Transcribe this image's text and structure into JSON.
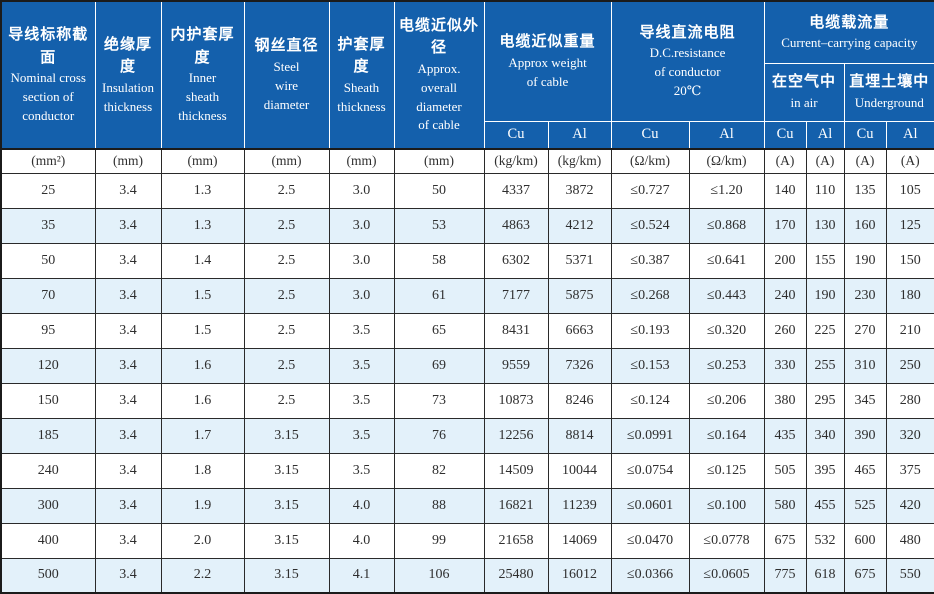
{
  "colors": {
    "header_bg": "#1460ac",
    "header_text": "#ffffff",
    "row_alt_bg": "#e3f1fa",
    "body_text": "#2e2e2e",
    "grid_line": "#2a2a2a"
  },
  "table": {
    "columns": [
      {
        "zh": "导线标称截面",
        "en": "Nominal cross\nsection of\nconductor"
      },
      {
        "zh": "绝缘厚度",
        "en": "Insulation\nthickness"
      },
      {
        "zh": "内护套厚度",
        "en": "Inner\nsheath\nthickness"
      },
      {
        "zh": "钢丝直径",
        "en": "Steel\nwire\ndiameter"
      },
      {
        "zh": "护套厚度",
        "en": "Sheath\nthickness"
      },
      {
        "zh": "电缆近似外径",
        "en": "Approx.\noverall\ndiameter\nof cable"
      }
    ],
    "groups": {
      "weight": {
        "zh": "电缆近似重量",
        "en": "Approx weight\nof cable"
      },
      "resistance": {
        "zh": "导线直流电阻",
        "en": "D.C.resistance\nof conductor\n20℃"
      },
      "capacity": {
        "zh": "电缆载流量",
        "en": "Current–carrying capacity"
      },
      "in_air": {
        "zh": "在空气中",
        "en": "in air"
      },
      "underground": {
        "zh": "直埋土壤中",
        "en": "Underground"
      }
    },
    "metal_row": [
      "Cu",
      "Al",
      "Cu",
      "Al",
      "Cu",
      "Al",
      "Cu",
      "Al"
    ],
    "units": [
      "(mm²)",
      "(mm)",
      "(mm)",
      "(mm)",
      "(mm)",
      "(mm)",
      "(kg/km)",
      "(kg/km)",
      "(Ω/km)",
      "(Ω/km)",
      "(A)",
      "(A)",
      "(A)",
      "(A)"
    ],
    "rows": [
      [
        "25",
        "3.4",
        "1.3",
        "2.5",
        "3.0",
        "50",
        "4337",
        "3872",
        "≤0.727",
        "≤1.20",
        "140",
        "110",
        "135",
        "105"
      ],
      [
        "35",
        "3.4",
        "1.3",
        "2.5",
        "3.0",
        "53",
        "4863",
        "4212",
        "≤0.524",
        "≤0.868",
        "170",
        "130",
        "160",
        "125"
      ],
      [
        "50",
        "3.4",
        "1.4",
        "2.5",
        "3.0",
        "58",
        "6302",
        "5371",
        "≤0.387",
        "≤0.641",
        "200",
        "155",
        "190",
        "150"
      ],
      [
        "70",
        "3.4",
        "1.5",
        "2.5",
        "3.0",
        "61",
        "7177",
        "5875",
        "≤0.268",
        "≤0.443",
        "240",
        "190",
        "230",
        "180"
      ],
      [
        "95",
        "3.4",
        "1.5",
        "2.5",
        "3.5",
        "65",
        "8431",
        "6663",
        "≤0.193",
        "≤0.320",
        "260",
        "225",
        "270",
        "210"
      ],
      [
        "120",
        "3.4",
        "1.6",
        "2.5",
        "3.5",
        "69",
        "9559",
        "7326",
        "≤0.153",
        "≤0.253",
        "330",
        "255",
        "310",
        "250"
      ],
      [
        "150",
        "3.4",
        "1.6",
        "2.5",
        "3.5",
        "73",
        "10873",
        "8246",
        "≤0.124",
        "≤0.206",
        "380",
        "295",
        "345",
        "280"
      ],
      [
        "185",
        "3.4",
        "1.7",
        "3.15",
        "3.5",
        "76",
        "12256",
        "8814",
        "≤0.0991",
        "≤0.164",
        "435",
        "340",
        "390",
        "320"
      ],
      [
        "240",
        "3.4",
        "1.8",
        "3.15",
        "3.5",
        "82",
        "14509",
        "10044",
        "≤0.0754",
        "≤0.125",
        "505",
        "395",
        "465",
        "375"
      ],
      [
        "300",
        "3.4",
        "1.9",
        "3.15",
        "4.0",
        "88",
        "16821",
        "11239",
        "≤0.0601",
        "≤0.100",
        "580",
        "455",
        "525",
        "420"
      ],
      [
        "400",
        "3.4",
        "2.0",
        "3.15",
        "4.0",
        "99",
        "21658",
        "14069",
        "≤0.0470",
        "≤0.0778",
        "675",
        "532",
        "600",
        "480"
      ],
      [
        "500",
        "3.4",
        "2.2",
        "3.15",
        "4.1",
        "106",
        "25480",
        "16012",
        "≤0.0366",
        "≤0.0605",
        "775",
        "618",
        "675",
        "550"
      ]
    ]
  }
}
